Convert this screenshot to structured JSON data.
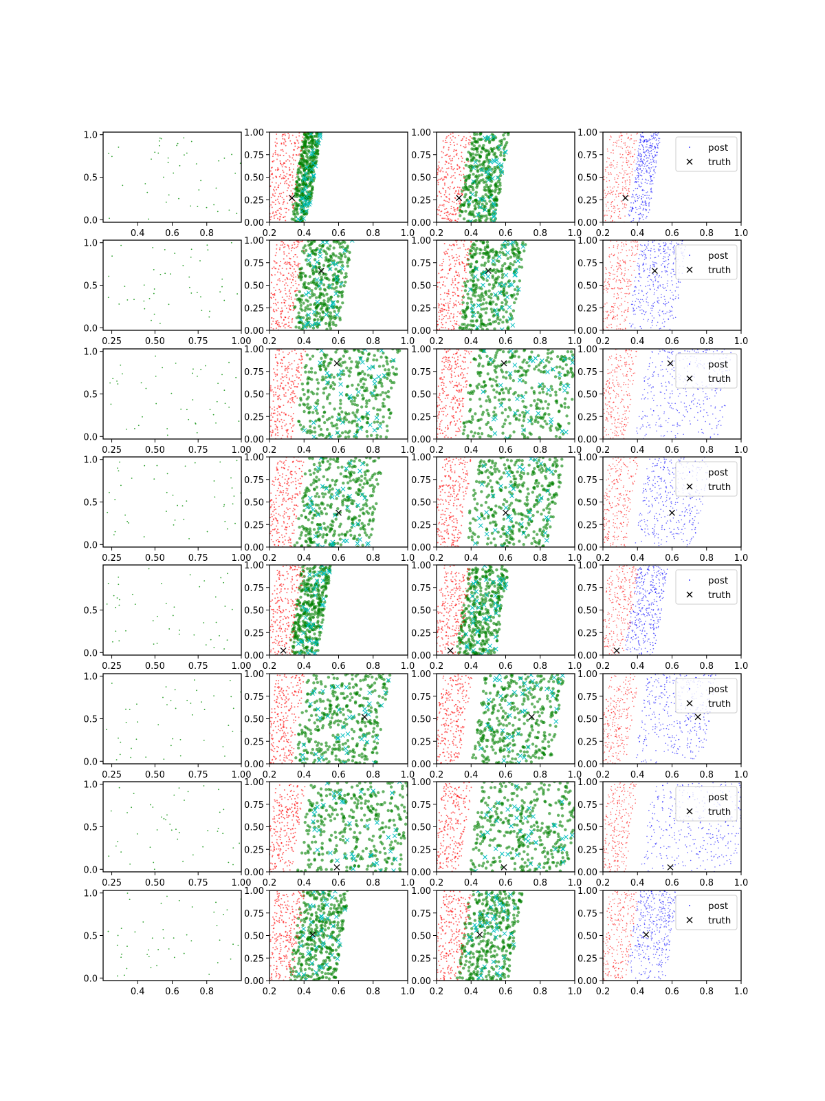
{
  "figure": {
    "rows": 8,
    "cols": 4,
    "colors": {
      "first_column_points": "#2ca02c",
      "prior_points": "#ff0000",
      "sample_points": "#008000",
      "sample_markers": "#00bfbf",
      "posterior_points": "#0000ff",
      "truth_marker": "#000000",
      "axes": "#000000"
    }
  },
  "legend": {
    "entries": [
      "post",
      "truth"
    ]
  },
  "chart_data": {
    "type": "scatter",
    "grid": false,
    "legend_position": "upper right (column 4 panels)",
    "panel_axes": {
      "column_1": {
        "xlim": [
          0.2,
          1.0
        ],
        "ylim": [
          -0.03,
          1.03
        ]
      },
      "columns_2_to_4": {
        "xlim": [
          0.2,
          1.0
        ],
        "ylim": [
          0.0,
          1.0
        ],
        "xticks": [
          "0.2",
          "0.4",
          "0.6",
          "0.8",
          "1.0"
        ],
        "yticks": [
          "0.00",
          "0.25",
          "0.50",
          "0.75",
          "1.00"
        ]
      }
    },
    "series": [
      {
        "name": "post",
        "marker": "dot",
        "color": "#0000ff"
      },
      {
        "name": "truth",
        "marker": "x",
        "color": "#000000"
      }
    ],
    "rows": [
      {
        "truth": [
          0.33,
          0.27
        ],
        "blue_band": [
          0.38,
          0.5
        ],
        "green_band_2": [
          0.36,
          0.46
        ],
        "green_band_3": [
          0.36,
          0.58
        ],
        "col1_xticks": [
          "0.4",
          "0.6",
          "0.8"
        ],
        "col1_yticks": [
          "0.0",
          "0.5",
          "1.0"
        ],
        "xticks_visible": [
          "0.2",
          "0.4",
          "0.6",
          "0.8",
          "1.0"
        ]
      },
      {
        "truth": [
          0.5,
          0.66
        ],
        "blue_band": [
          0.38,
          0.65
        ],
        "green_band_2": [
          0.36,
          0.64
        ],
        "green_band_3": [
          0.36,
          0.68
        ],
        "col1_xticks": [
          "0.25",
          "0.50",
          "0.75",
          "1.00"
        ],
        "col1_yticks": [
          "0.0",
          "0.5",
          "1.0"
        ]
      },
      {
        "truth": [
          0.59,
          0.84
        ],
        "blue_band": [
          0.42,
          0.92
        ],
        "green_band_2": [
          0.38,
          0.92
        ],
        "green_band_3": [
          0.38,
          1.0
        ],
        "col1_xticks": [
          "0.25",
          "0.50",
          "0.75",
          "1.00"
        ],
        "col1_yticks": [
          "0.0",
          "0.5",
          "1.0"
        ]
      },
      {
        "truth": [
          0.6,
          0.38
        ],
        "blue_band": [
          0.42,
          0.78
        ],
        "green_band_2": [
          0.38,
          0.82
        ],
        "green_band_3": [
          0.4,
          0.9
        ],
        "col1_xticks": [
          "0.25",
          "0.50",
          "0.75",
          "1.00"
        ],
        "col1_yticks": [
          "0.0",
          "0.5",
          "1.0"
        ]
      },
      {
        "truth": [
          0.28,
          0.05
        ],
        "blue_band": [
          0.36,
          0.54
        ],
        "green_band_2": [
          0.35,
          0.52
        ],
        "green_band_3": [
          0.35,
          0.58
        ],
        "col1_xticks": [
          "0.25",
          "0.50",
          "0.75",
          "1.00"
        ],
        "col1_yticks": [
          "0.0",
          "0.5"
        ]
      },
      {
        "truth": [
          0.75,
          0.52
        ],
        "blue_band": [
          0.42,
          0.82
        ],
        "green_band_2": [
          0.38,
          0.86
        ],
        "green_band_3": [
          0.44,
          0.9
        ],
        "col1_xticks": [
          "0.25",
          "0.50",
          "0.75",
          "1.00"
        ],
        "col1_yticks": [
          "0.0",
          "0.5",
          "1.0"
        ]
      },
      {
        "truth": [
          0.59,
          0.05
        ],
        "blue_band": [
          0.45,
          1.0
        ],
        "green_band_2": [
          0.4,
          1.0
        ],
        "green_band_3": [
          0.42,
          1.0
        ],
        "col1_xticks": [
          "0.25",
          "0.50",
          "0.75",
          "1.00"
        ],
        "col1_yticks": [
          "0.0",
          "0.5",
          "1.0"
        ]
      },
      {
        "truth": [
          0.45,
          0.51
        ],
        "blue_band": [
          0.37,
          0.6
        ],
        "green_band_2": [
          0.35,
          0.62
        ],
        "green_band_3": [
          0.35,
          0.66
        ],
        "col1_xticks": [
          "0.4",
          "0.6",
          "0.8"
        ],
        "col1_yticks": [
          "0.0",
          "0.5",
          "1.0"
        ]
      }
    ]
  }
}
